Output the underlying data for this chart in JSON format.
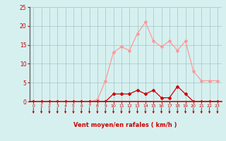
{
  "x": [
    0,
    1,
    2,
    3,
    4,
    5,
    6,
    7,
    8,
    9,
    10,
    11,
    12,
    13,
    14,
    15,
    16,
    17,
    18,
    19,
    20,
    21,
    22,
    23
  ],
  "rafales": [
    0,
    0,
    0,
    0,
    0,
    0,
    0,
    0,
    0.5,
    5.5,
    13,
    14.5,
    13.5,
    18,
    21,
    16,
    14.5,
    16,
    13.5,
    16,
    8,
    5.5,
    5.5,
    5.5
  ],
  "moyen": [
    0,
    0,
    0,
    0,
    0,
    0,
    0,
    0,
    0,
    0,
    2,
    2,
    2,
    3,
    2,
    3,
    1,
    1,
    4,
    2,
    0,
    0,
    0,
    0
  ],
  "xlabel": "Vent moyen/en rafales ( km/h )",
  "ylim": [
    0,
    25
  ],
  "xlim": [
    -0.5,
    23.5
  ],
  "yticks": [
    0,
    5,
    10,
    15,
    20,
    25
  ],
  "xticks": [
    0,
    1,
    2,
    3,
    4,
    5,
    6,
    7,
    8,
    9,
    10,
    11,
    12,
    13,
    14,
    15,
    16,
    17,
    18,
    19,
    20,
    21,
    22,
    23
  ],
  "bg_color": "#d6f0f0",
  "grid_color": "#aacccc",
  "line_color_rafales": "#ff9999",
  "line_color_moyen": "#cc0000",
  "marker_color_rafales": "#ff9999",
  "marker_color_moyen": "#cc0000",
  "arrow_color": "#cc0000",
  "xlabel_color": "#cc0000",
  "tick_color": "#cc0000",
  "left_spine_color": "#666666",
  "bottom_line_color": "#cc0000"
}
